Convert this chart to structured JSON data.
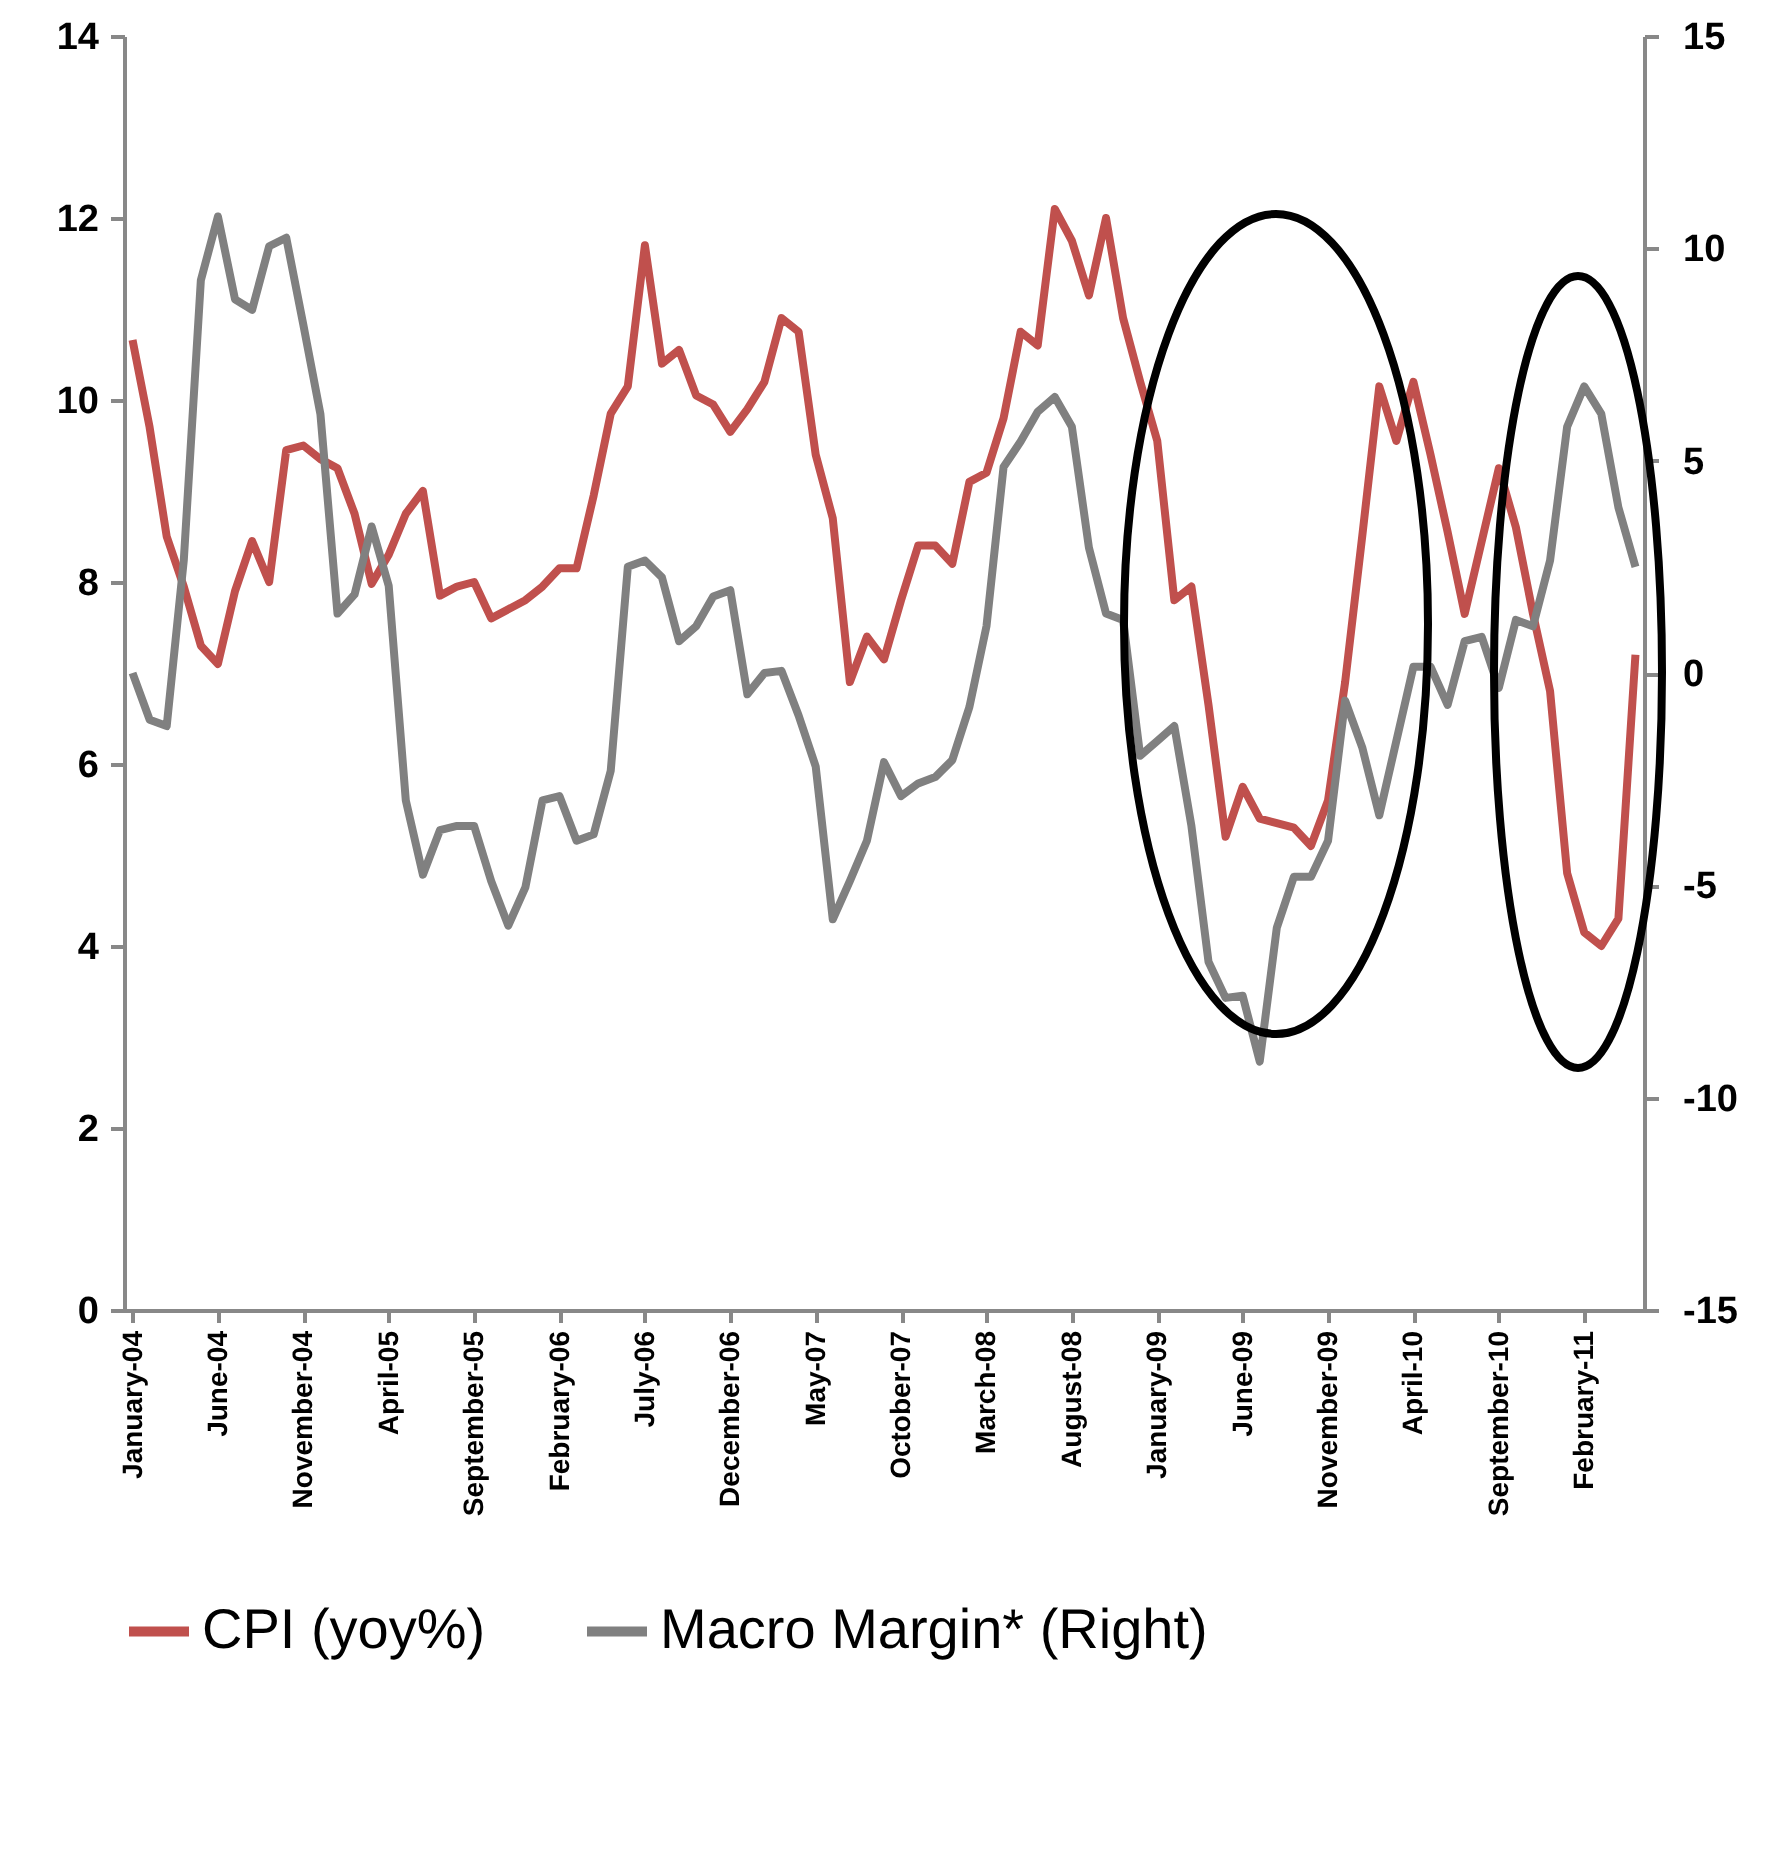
{
  "chart_data": {
    "type": "line",
    "categories": [
      "January-04",
      null,
      null,
      null,
      null,
      "June-04",
      null,
      null,
      null,
      null,
      "November-04",
      null,
      null,
      null,
      null,
      "April-05",
      null,
      null,
      null,
      null,
      "September-05",
      null,
      null,
      null,
      null,
      "February-06",
      null,
      null,
      null,
      null,
      "July-06",
      null,
      null,
      null,
      null,
      "December-06",
      null,
      null,
      null,
      null,
      "May-07",
      null,
      null,
      null,
      null,
      "October-07",
      null,
      null,
      null,
      null,
      "March-08",
      null,
      null,
      null,
      null,
      "August-08",
      null,
      null,
      null,
      null,
      "January-09",
      null,
      null,
      null,
      null,
      "June-09",
      null,
      null,
      null,
      null,
      "November-09",
      null,
      null,
      null,
      null,
      "April-10",
      null,
      null,
      null,
      null,
      "September-10",
      null,
      null,
      null,
      null,
      "February-11",
      null,
      null,
      null
    ],
    "series": [
      {
        "name": "CPI (yoy%)",
        "color": "#c0504d",
        "values": [
          10.66,
          9.7,
          8.5,
          7.95,
          7.3,
          7.1,
          7.9,
          8.45,
          8.0,
          9.45,
          9.5,
          9.35,
          9.25,
          8.75,
          7.98,
          8.3,
          8.75,
          9.0,
          7.85,
          7.95,
          8.0,
          7.6,
          7.7,
          7.8,
          7.95,
          8.15,
          8.15,
          8.95,
          9.85,
          10.15,
          11.7,
          10.4,
          10.55,
          10.05,
          9.95,
          9.65,
          9.9,
          10.2,
          10.9,
          10.75,
          9.4,
          8.7,
          6.9,
          7.4,
          7.15,
          7.8,
          8.4,
          8.4,
          8.2,
          9.1,
          9.2,
          9.8,
          10.75,
          10.6,
          12.1,
          11.75,
          11.15,
          12.0,
          10.9,
          10.2,
          9.55,
          7.8,
          7.95,
          6.65,
          5.2,
          5.75,
          5.4,
          5.35,
          5.3,
          5.1,
          5.6,
          6.9,
          8.5,
          10.15,
          9.55,
          10.2,
          9.4,
          8.55,
          7.65,
          8.45,
          9.25,
          8.6,
          7.65,
          6.8,
          4.8,
          4.15,
          4.0,
          4.3,
          7.2
        ]
      },
      {
        "name": "Macro Margin* (Right)",
        "color": "#808080",
        "axis": "y2",
        "values": [
          0.0,
          -1.1,
          -1.25,
          2.65,
          9.25,
          10.75,
          8.8,
          8.55,
          10.05,
          10.25,
          8.2,
          6.1,
          1.4,
          1.85,
          3.45,
          2.05,
          -3.0,
          -4.75,
          -3.7,
          -3.6,
          -3.6,
          -4.9,
          -5.95,
          -5.05,
          -3.0,
          -2.9,
          -3.95,
          -3.8,
          -2.3,
          2.5,
          2.65,
          2.25,
          0.75,
          1.1,
          1.8,
          1.95,
          -0.5,
          0.0,
          0.05,
          -1.0,
          -2.2,
          -5.8,
          -4.9,
          -3.95,
          -2.1,
          -2.9,
          -2.6,
          -2.45,
          -2.05,
          -0.8,
          1.1,
          4.85,
          5.45,
          6.15,
          6.5,
          5.8,
          2.95,
          1.4,
          1.25,
          -1.95,
          -1.6,
          -1.25,
          -3.6,
          -6.8,
          -7.65,
          -7.6,
          -9.15,
          -6.0,
          -4.8,
          -4.8,
          -3.95,
          -0.65,
          -1.75,
          -3.35,
          -1.6,
          0.15,
          0.15,
          -0.75,
          0.75,
          0.85,
          -0.35,
          1.25,
          1.1,
          2.65,
          5.8,
          6.75,
          6.1,
          3.9,
          2.5
        ]
      }
    ],
    "ylim": [
      0,
      14
    ],
    "yticks": [
      0,
      2,
      4,
      6,
      8,
      10,
      12,
      14
    ],
    "y2lim": [
      -15,
      15
    ],
    "y2ticks": [
      -15,
      -10,
      -5,
      0,
      5,
      10,
      15
    ],
    "grid": false,
    "legend": "bottom"
  }
}
